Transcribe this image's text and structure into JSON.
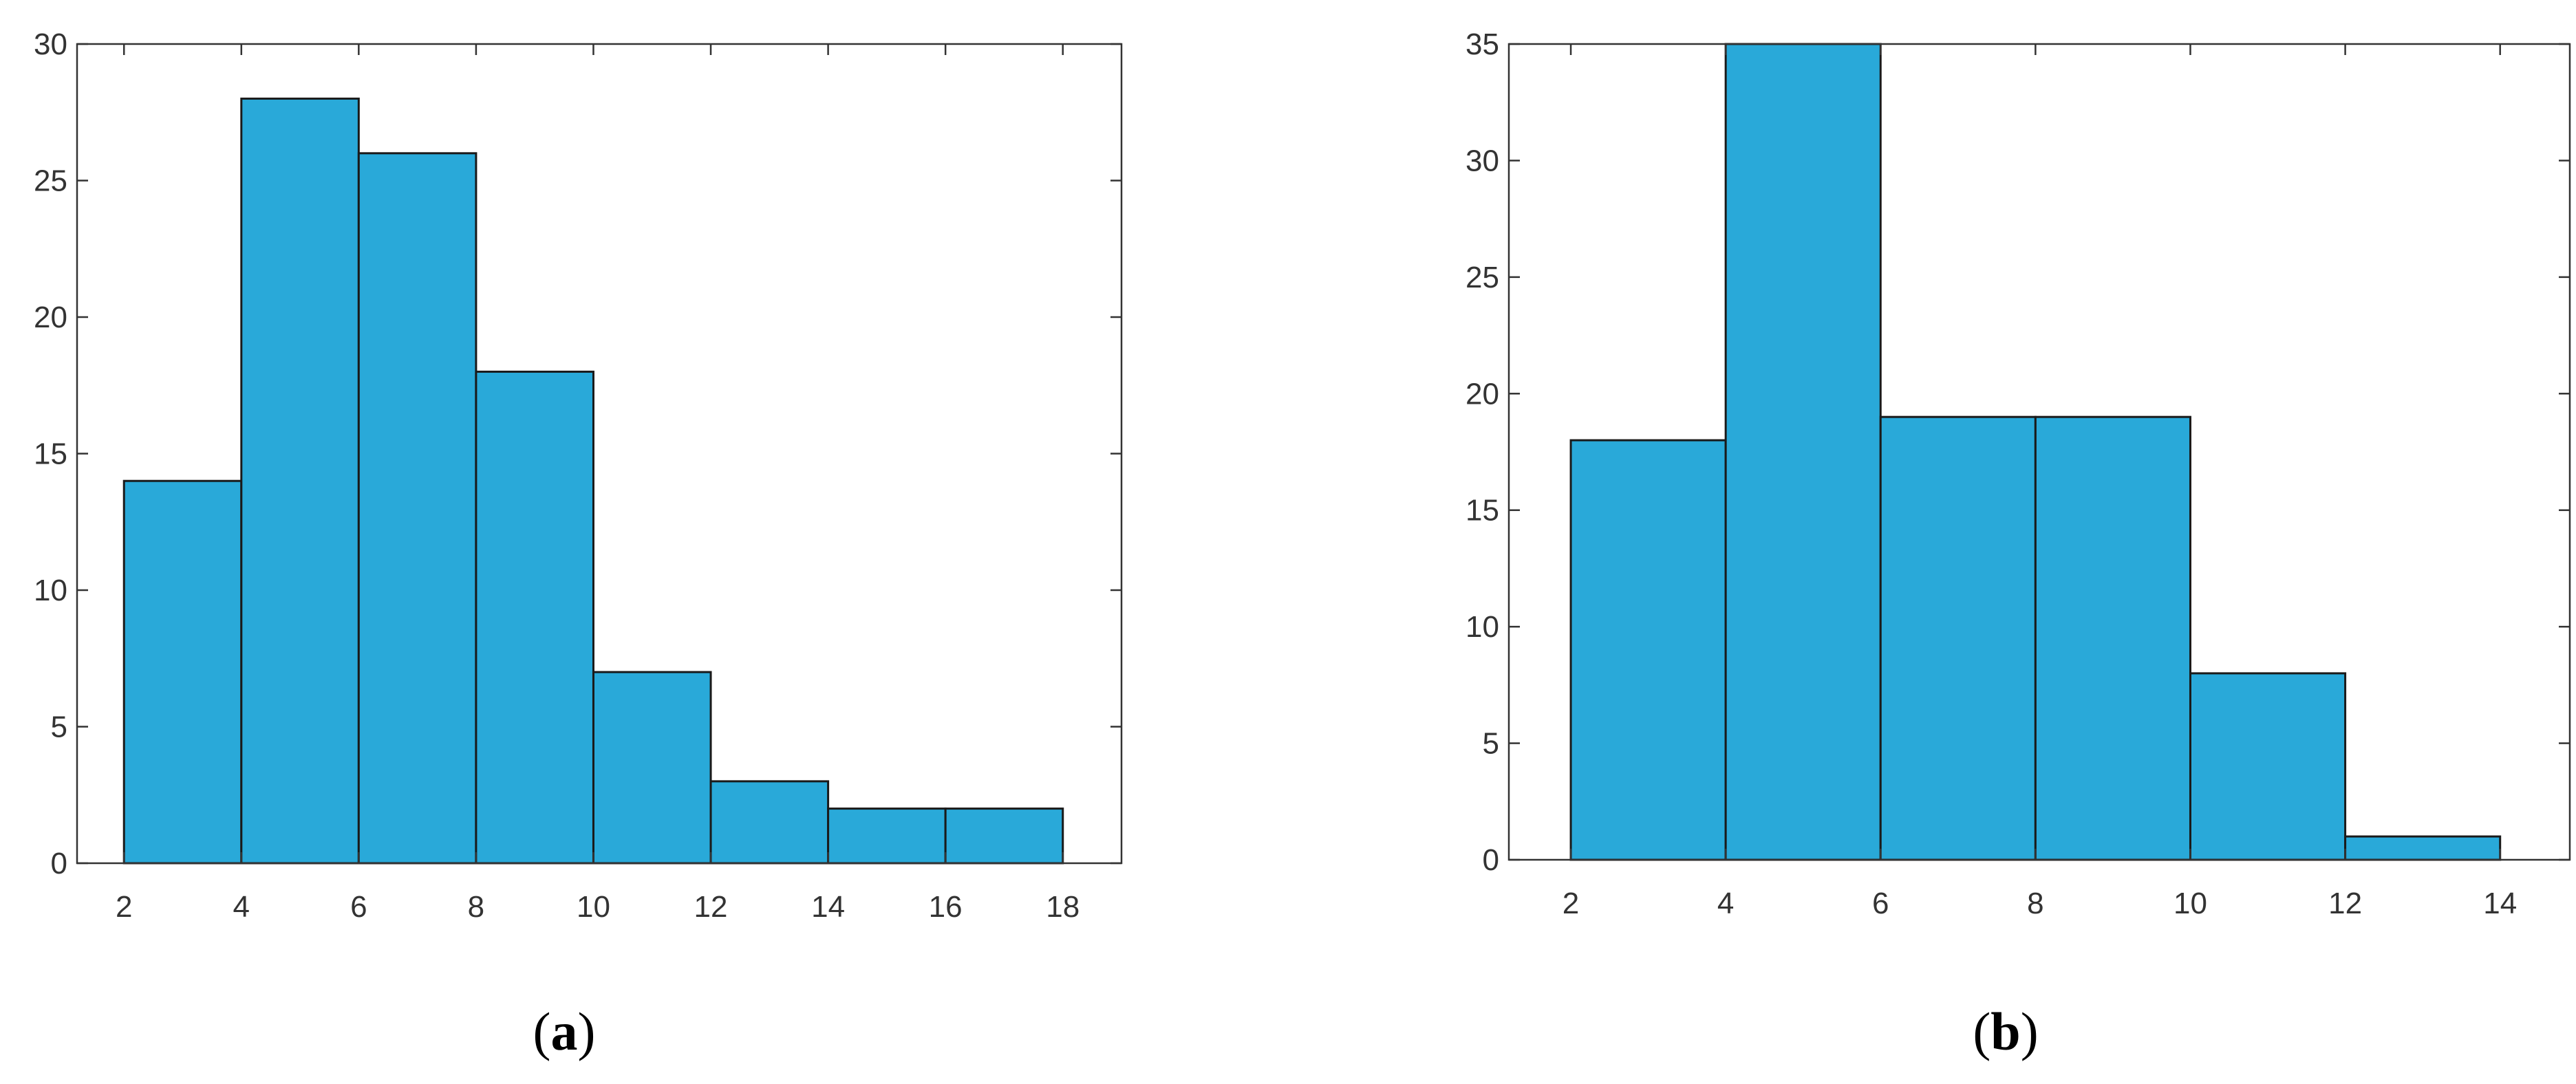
{
  "chart_data": [
    {
      "type": "bar",
      "panel_label": "a",
      "bin_edges": [
        2,
        4,
        6,
        8,
        10,
        12,
        14,
        16,
        18
      ],
      "values": [
        14,
        28,
        26,
        18,
        7,
        3,
        2,
        2
      ],
      "xticks": [
        2,
        4,
        6,
        8,
        10,
        12,
        14,
        16,
        18
      ],
      "yticks": [
        0,
        5,
        10,
        15,
        20,
        25,
        30
      ],
      "xlim": [
        1.2,
        19
      ],
      "ylim": [
        0,
        30
      ],
      "title": "",
      "xlabel": "",
      "ylabel": "",
      "grid": false,
      "bar_color": "#29a9d9",
      "edge_color": "#1a1a1a"
    },
    {
      "type": "bar",
      "panel_label": "b",
      "bin_edges": [
        2,
        4,
        6,
        8,
        10,
        12,
        14
      ],
      "values": [
        18,
        35,
        19,
        19,
        8,
        1
      ],
      "xticks": [
        2,
        4,
        6,
        8,
        10,
        12,
        14
      ],
      "yticks": [
        0,
        5,
        10,
        15,
        20,
        25,
        30,
        35
      ],
      "xlim": [
        1.2,
        14.9
      ],
      "ylim": [
        0,
        35
      ],
      "title": "",
      "xlabel": "",
      "ylabel": "",
      "grid": false,
      "bar_color": "#29a9d9",
      "edge_color": "#1a1a1a"
    }
  ],
  "panel_labels": {
    "a": {
      "open": "(",
      "letter": "a",
      "close": ")"
    },
    "b": {
      "open": "(",
      "letter": "b",
      "close": ")"
    }
  }
}
